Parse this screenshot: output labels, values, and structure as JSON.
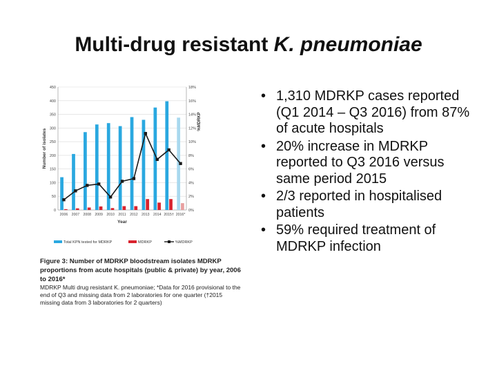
{
  "slide": {
    "title_main": "Multi-drug resistant ",
    "title_italic": "K. pneumoniae"
  },
  "bullets": [
    "1,310 MDRKP cases reported (Q1 2014 – Q3 2016) from 87% of acute hospitals",
    "20% increase in MDRKP reported to Q3 2016 versus same period 2015",
    "2/3 reported in hospitalised patients",
    "59% required treatment of MDRKP infection"
  ],
  "bullet_glyph": "•",
  "caption": {
    "head": "Figure 3: Number of MDRKP bloodstream isolates MDRKP proportions from acute hospitals (public & private) by year, 2006 to 2016*",
    "note1": "MDRKP   Multi drug resistant K. pneumoniae; *Data for 2016 provisional to the end of Q3 and missing data from 2 laboratories for one quarter (†2015 missing data from 3 laboratories for 2 quarters)"
  },
  "chart_data": {
    "type": "bar",
    "categories": [
      "2006",
      "2007",
      "2008",
      "2009",
      "2010",
      "2011",
      "2012",
      "2013",
      "2014",
      "2015†",
      "2016*"
    ],
    "series": [
      {
        "name": "Total KPN tested for MDRKP",
        "type": "bar",
        "axis": "left",
        "values": [
          120,
          205,
          285,
          313,
          318,
          307,
          340,
          330,
          375,
          398,
          338
        ]
      },
      {
        "name": "MDRKP",
        "type": "bar",
        "axis": "left",
        "values": [
          3,
          6,
          9,
          13,
          7,
          14,
          14,
          40,
          27,
          40,
          25
        ]
      },
      {
        "name": "%MDRKP",
        "type": "line",
        "axis": "right",
        "values": [
          1.5,
          2.8,
          3.6,
          3.8,
          1.9,
          4.2,
          4.6,
          11.2,
          7.4,
          8.8,
          6.8
        ]
      }
    ],
    "xlabel": "Year",
    "ylabel": "Number of isolates",
    "y2label": "%MDRKP",
    "ylim": [
      0,
      450
    ],
    "y2lim": [
      0,
      18
    ],
    "yticks": [
      "0",
      "50",
      "100",
      "150",
      "200",
      "250",
      "300",
      "350",
      "400",
      "450"
    ],
    "y2ticks": [
      "0%",
      "2%",
      "4%",
      "6%",
      "8%",
      "10%",
      "12%",
      "14%",
      "16%",
      "18%"
    ],
    "legend_position": "bottom",
    "colors": {
      "total": "#2aa8e0",
      "total_provisional": "#a8d8ee",
      "mdrkp": "#d9232e",
      "mdrkp_provisional": "#e8a0a0",
      "pct_line": "#1a1a1a",
      "grid": "#d9d9d9"
    }
  }
}
